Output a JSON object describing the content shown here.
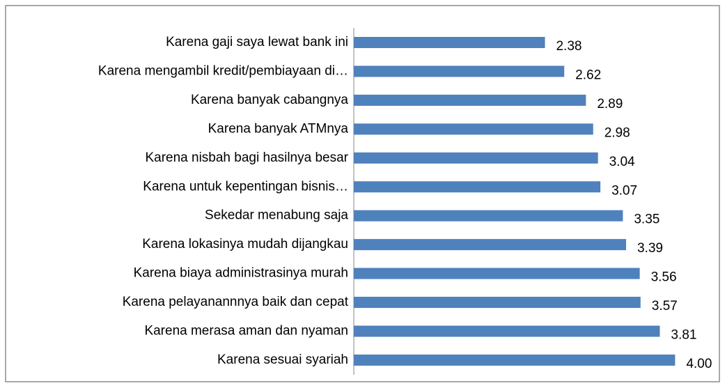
{
  "chart_data": {
    "type": "bar",
    "orientation": "horizontal",
    "categories": [
      "Karena gaji saya lewat bank ini",
      "Karena mengambil kredit/pembiayaan di…",
      "Karena banyak cabangnya",
      "Karena banyak ATMnya",
      "Karena nisbah bagi hasilnya besar",
      "Karena untuk kepentingan bisnis…",
      "Sekedar menabung saja",
      "Karena lokasinya mudah dijangkau",
      "Karena biaya administrasinya murah",
      "Karena pelayanannnya baik dan cepat",
      "Karena merasa aman dan nyaman",
      "Karena sesuai syariah"
    ],
    "values": [
      2.38,
      2.62,
      2.89,
      2.98,
      3.04,
      3.07,
      3.35,
      3.39,
      3.56,
      3.57,
      3.81,
      4.0
    ],
    "value_labels": [
      "2.38",
      "2.62",
      "2.89",
      "2.98",
      "3.04",
      "3.07",
      "3.35",
      "3.39",
      "3.56",
      "3.57",
      "3.81",
      "4.00"
    ],
    "color": "#4f81bd",
    "xlim": [
      0,
      4.5
    ]
  }
}
